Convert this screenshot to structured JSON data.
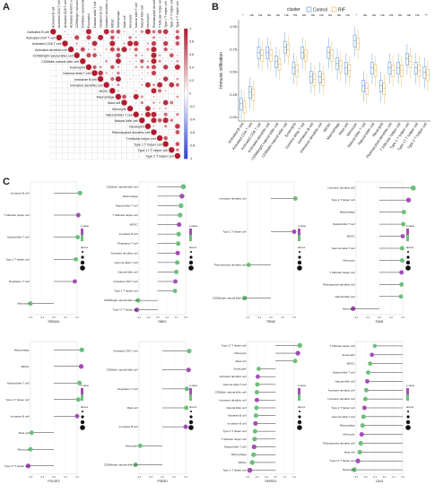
{
  "panels": {
    "a": "A",
    "b": "B",
    "c": "C"
  },
  "colors": {
    "pos": "#b2182b",
    "neg": "#2c3fd6",
    "control": "#4a90d9",
    "rif": "#e8b04a",
    "lollipop_green": "#6dbf7b",
    "lollipop_purple": "#a24fb5"
  },
  "panelA": {
    "cells": [
      "Activated B cell",
      "Activated CD4 T cell",
      "Activated CD8 T cell",
      "Activated dendritic cell",
      "CD56bright natural killer cell",
      "CD56dim natural killer cell",
      "Eosinophil",
      "Gamma delta T cell",
      "Immature B cell",
      "Immature dendritic cell",
      "MDSC",
      "Macrophage",
      "Mast cell",
      "Monocyte",
      "Natural killer T cell",
      "Natural killer cell",
      "Neutrophil",
      "Plasmacytoid dendritic cell",
      "T follicular helper cell",
      "Type 1 T helper cell",
      "Type 17 T helper cell",
      "Type 2 T helper cell"
    ],
    "colorbar_ticks": [
      "1",
      "0.8",
      "0.6",
      "0.4",
      "0.2",
      "0",
      "-0.2",
      "-0.4",
      "-0.6",
      "-0.8",
      "-1"
    ]
  },
  "panelB": {
    "legend_title": "cluster",
    "legend_items": [
      "Control",
      "RIF"
    ],
    "ylabel": "Immune infiltration",
    "yticks": [
      "1.00",
      "0.75",
      "0.50",
      "0.25",
      "0.00"
    ],
    "sig": [
      "*",
      "ns",
      "ns",
      "ns",
      "ns",
      "ns",
      "ns",
      "ns",
      "ns",
      "ns",
      "ns",
      "ns",
      "ns",
      "*",
      "ns",
      "ns",
      "ns",
      "ns",
      "ns",
      "ns",
      "ns",
      "**"
    ]
  },
  "lollipops": [
    {
      "gene": "SRD5A1",
      "items": [
        "Immature B cell",
        "T follicular helper cell",
        "Natural killer T cell",
        "Type 1 T helper cell",
        "Regulatory T cell",
        "Monocyte"
      ],
      "values": [
        0.45,
        0.42,
        0.41,
        0.38,
        0.36,
        -0.4
      ],
      "xticks": [
        "-0.4",
        "-0.2",
        "0.0",
        "0.2",
        "0.4"
      ]
    },
    {
      "gene": "RBKS",
      "items": [
        "CD56dim natural killer cell",
        "Macrophage",
        "Natural killer T cell",
        "T follicular helper cell",
        "MDSC",
        "Immature B cell",
        "Regulatory T cell",
        "Activated dendritic cell",
        "Gamma delta T cell",
        "Natural killer cell",
        "Activated CD4 T cell",
        "Type 1 T helper cell",
        "CD56bright natural killer cell",
        "Type 17 T helper cell"
      ],
      "values": [
        0.55,
        0.52,
        0.5,
        0.48,
        0.46,
        0.45,
        0.44,
        0.43,
        0.42,
        0.4,
        0.38,
        0.37,
        -0.42,
        -0.45
      ],
      "xticks": [
        "-0.4",
        "-0.2",
        "0.0",
        "0.2",
        "0.4",
        "0.6"
      ]
    },
    {
      "gene": "TRIM2",
      "items": [
        "Immature dendritic cell",
        "Type 2 T helper cell",
        "Plasmacytoid dendritic cell",
        "CD56bright natural killer cell"
      ],
      "values": [
        0.42,
        0.4,
        -0.38,
        -0.45
      ],
      "xticks": [
        "-0.4",
        "-0.2",
        "0.0",
        "0.2",
        "0.4"
      ]
    },
    {
      "gene": "FAM2",
      "items": [
        "Immature dendritic cell",
        "Type 2 T helper cell",
        "Macrophage",
        "Natural killer T cell",
        "MDSC",
        "Gamma delta T cell",
        "Monocyte",
        "T follicular helper cell",
        "Plasmacytoid dendritic cell",
        "Natural killer cell",
        "Neutrophil"
      ],
      "values": [
        0.58,
        0.5,
        0.42,
        0.41,
        0.4,
        0.39,
        0.39,
        0.38,
        0.38,
        0.37,
        -0.45
      ],
      "xticks": [
        "-0.4",
        "-0.2",
        "0.0",
        "0.2",
        "0.4"
      ]
    },
    {
      "gene": "POU3F2",
      "items": [
        "Macrophage",
        "MDSC",
        "Natural killer T cell",
        "Type 1 T helper cell",
        "Immature B cell",
        "Mast cell",
        "Monocyte",
        "Type 17 T helper cell"
      ],
      "values": [
        0.48,
        0.47,
        0.44,
        0.42,
        0.4,
        -0.38,
        -0.4,
        -0.44
      ],
      "xticks": [
        "-0.4",
        "-0.2",
        "0.0",
        "0.2",
        "0.4"
      ]
    },
    {
      "gene": "PDE5D",
      "items": [
        "Activated CD4 T cell",
        "CD56dim natural killer cell",
        "Regulatory T cell",
        "Mast cell",
        "Immature B cell",
        "Neutrophil",
        "CD56bright natural killer cell"
      ],
      "values": [
        0.46,
        0.45,
        0.42,
        0.41,
        0.4,
        -0.38,
        -0.46
      ],
      "xticks": [
        "-0.4",
        "-0.2",
        "0.0",
        "0.2",
        "0.4"
      ]
    },
    {
      "gene": "PAPSS1",
      "items": [
        "Type 17 T helper cell",
        "Monocyte",
        "Mast cell",
        "Eosinophil",
        "Activated dendritic cell",
        "Gamma delta T cell",
        "CD56dim natural killer cell",
        "Immature dendritic cell",
        "Natural killer cell",
        "Activated B cell",
        "Immature B cell",
        "Type 2 T helper cell",
        "T follicular helper cell",
        "Natural killer T cell",
        "Macrophage",
        "MDSC",
        "Type 1 T helper cell"
      ],
      "values": [
        0.52,
        0.48,
        0.42,
        -0.36,
        -0.38,
        -0.39,
        -0.4,
        -0.4,
        -0.41,
        -0.42,
        -0.43,
        -0.44,
        -0.45,
        -0.46,
        -0.47,
        -0.5,
        -0.55
      ],
      "xticks": [
        "-0.6",
        "-0.4",
        "-0.2",
        "0.0",
        "0.2",
        "0.4"
      ]
    },
    {
      "gene": "CA12",
      "items": [
        "T follicular helper cell",
        "Eosinophil",
        "MDSC",
        "Natural killer T cell",
        "Natural killer cell",
        "Activated dendritic cell",
        "Immature dendritic cell",
        "Type 2 T helper cell",
        "Gamma delta T cell",
        "Macrophage",
        "Monocyte",
        "Plasmacytoid dendritic cell",
        "Mast cell",
        "Type 17 T helper cell",
        "Neutrophil"
      ],
      "values": [
        -0.3,
        -0.33,
        -0.35,
        -0.37,
        -0.38,
        -0.39,
        -0.4,
        -0.41,
        -0.42,
        -0.43,
        -0.44,
        -0.45,
        -0.46,
        -0.48,
        -0.52
      ],
      "xticks": [
        "-0.5",
        "-0.4",
        "-0.3",
        "-0.2",
        "-0.1",
        "0.0"
      ]
    }
  ],
  "lollipop_legend": {
    "pvalue": "p.value",
    "abscor": "abscor"
  }
}
